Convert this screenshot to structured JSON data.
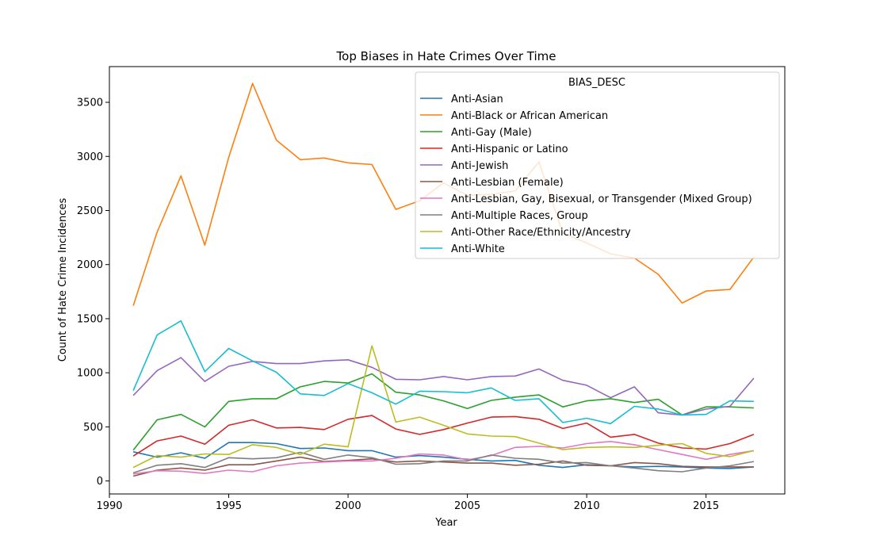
{
  "chart_data": {
    "type": "line",
    "title": "Top Biases in Hate Crimes Over Time",
    "xlabel": "Year",
    "ylabel": "Count of Hate Crime Incidences",
    "xlim": [
      1990,
      2018.3
    ],
    "ylim": [
      -120,
      3830
    ],
    "xticks": [
      1990,
      1995,
      2000,
      2005,
      2010,
      2015
    ],
    "yticks": [
      0,
      500,
      1000,
      1500,
      2000,
      2500,
      3000,
      3500
    ],
    "legend_title": "BIAS_DESC",
    "legend_position": "upper right",
    "grid": false,
    "x": [
      1991,
      1992,
      1993,
      1994,
      1995,
      1996,
      1997,
      1998,
      1999,
      2000,
      2001,
      2002,
      2003,
      2004,
      2005,
      2006,
      2007,
      2008,
      2009,
      2010,
      2011,
      2012,
      2013,
      2014,
      2015,
      2016,
      2017
    ],
    "series": [
      {
        "name": "Anti-Asian",
        "color": "#1f77b4",
        "values": [
          270,
          220,
          260,
          210,
          355,
          355,
          345,
          300,
          305,
          280,
          280,
          220,
          235,
          220,
          200,
          185,
          190,
          145,
          125,
          150,
          140,
          130,
          135,
          130,
          120,
          115,
          130
        ]
      },
      {
        "name": "Anti-Black or African American",
        "color": "#ff7f0e",
        "values": [
          1620,
          2300,
          2820,
          2180,
          2990,
          3675,
          3150,
          2970,
          2985,
          2940,
          2925,
          2510,
          2590,
          2755,
          2640,
          2650,
          2680,
          2950,
          2290,
          2200,
          2100,
          2060,
          1910,
          1645,
          1755,
          1770,
          2070
        ]
      },
      {
        "name": "Anti-Gay (Male)",
        "color": "#2ca02c",
        "values": [
          285,
          565,
          615,
          500,
          735,
          760,
          760,
          870,
          920,
          905,
          990,
          820,
          795,
          740,
          670,
          745,
          775,
          795,
          685,
          740,
          760,
          725,
          755,
          610,
          685,
          685,
          675
        ]
      },
      {
        "name": "Anti-Hispanic or Latino",
        "color": "#d62728",
        "values": [
          230,
          370,
          415,
          340,
          515,
          565,
          490,
          495,
          475,
          570,
          605,
          480,
          430,
          475,
          535,
          590,
          595,
          570,
          485,
          535,
          405,
          430,
          350,
          305,
          295,
          345,
          430
        ]
      },
      {
        "name": "Anti-Jewish",
        "color": "#9467bd",
        "values": [
          790,
          1020,
          1140,
          920,
          1060,
          1105,
          1085,
          1085,
          1110,
          1120,
          1050,
          940,
          935,
          965,
          935,
          965,
          970,
          1035,
          930,
          885,
          770,
          870,
          630,
          610,
          665,
          690,
          950
        ]
      },
      {
        "name": "Anti-Lesbian (Female)",
        "color": "#8c564b",
        "values": [
          45,
          100,
          120,
          100,
          150,
          150,
          185,
          220,
          180,
          190,
          205,
          175,
          185,
          175,
          165,
          165,
          145,
          155,
          185,
          145,
          140,
          170,
          160,
          135,
          130,
          130,
          130
        ]
      },
      {
        "name": "Anti-Lesbian, Gay, Bisexual, or Transgender (Mixed Group)",
        "color": "#e377c2",
        "values": [
          65,
          95,
          90,
          70,
          100,
          85,
          140,
          165,
          175,
          185,
          185,
          210,
          250,
          240,
          195,
          235,
          310,
          320,
          305,
          345,
          365,
          335,
          290,
          245,
          200,
          245,
          280
        ]
      },
      {
        "name": "Anti-Multiple Races, Group",
        "color": "#7f7f7f",
        "values": [
          75,
          145,
          160,
          125,
          215,
          205,
          215,
          265,
          200,
          240,
          215,
          155,
          160,
          185,
          185,
          240,
          210,
          200,
          165,
          170,
          140,
          120,
          95,
          85,
          120,
          140,
          180
        ]
      },
      {
        "name": "Anti-Other Race/Ethnicity/Ancestry",
        "color": "#bcbd22",
        "values": [
          125,
          235,
          220,
          250,
          245,
          335,
          310,
          245,
          340,
          315,
          1250,
          545,
          590,
          515,
          435,
          415,
          410,
          350,
          290,
          310,
          315,
          310,
          330,
          345,
          255,
          225,
          280
        ]
      },
      {
        "name": "Anti-White",
        "color": "#17becf",
        "values": [
          835,
          1350,
          1480,
          1010,
          1225,
          1110,
          1005,
          805,
          790,
          900,
          815,
          710,
          830,
          825,
          815,
          860,
          745,
          760,
          540,
          580,
          530,
          690,
          665,
          610,
          615,
          740,
          735
        ]
      }
    ]
  }
}
